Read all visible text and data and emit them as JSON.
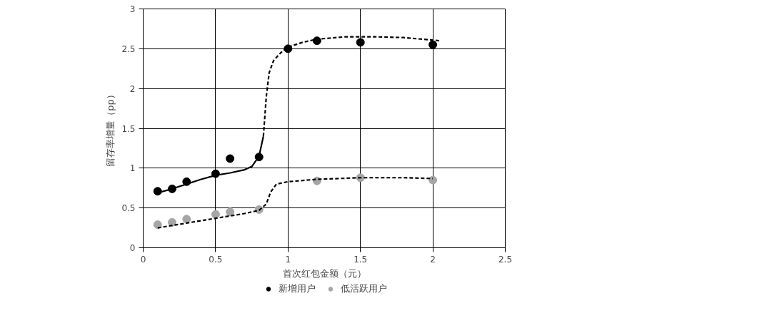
{
  "chart_data": {
    "type": "scatter",
    "xlabel": "首次红包金额（元）",
    "ylabel": "留存率增量（pp）",
    "xlim": [
      0,
      2.5
    ],
    "xticks": [
      0,
      0.5,
      1,
      1.5,
      2,
      2.5
    ],
    "ylim": [
      0,
      3
    ],
    "yticks": [
      0,
      0.5,
      1,
      1.5,
      2,
      2.5,
      3
    ],
    "grid": true,
    "legend": "bottom",
    "marker": "circle",
    "series": [
      {
        "name": "新增用户",
        "color": "#000000",
        "x": [
          0.1,
          0.2,
          0.3,
          0.5,
          0.6,
          0.8,
          1.0,
          1.2,
          1.5,
          2.0
        ],
        "values": [
          0.71,
          0.74,
          0.83,
          0.93,
          1.12,
          1.14,
          2.5,
          2.6,
          2.58,
          2.55
        ]
      },
      {
        "name": "低活跃用户",
        "color": "#a6a6a6",
        "x": [
          0.1,
          0.2,
          0.3,
          0.5,
          0.6,
          0.8,
          1.2,
          1.5,
          2.0
        ],
        "values": [
          0.29,
          0.32,
          0.36,
          0.42,
          0.45,
          0.48,
          0.84,
          0.88,
          0.85
        ]
      },
      {
        "type": "line",
        "color": "#000000",
        "line_style": "solid",
        "marker": "none",
        "x": [
          0.1,
          0.2,
          0.3,
          0.4,
          0.5,
          0.6,
          0.7,
          0.75,
          0.8,
          0.83
        ],
        "values": [
          0.69,
          0.74,
          0.8,
          0.86,
          0.91,
          0.94,
          0.98,
          1.02,
          1.15,
          1.4
        ]
      },
      {
        "type": "line",
        "color": "#000000",
        "line_style": "dashed",
        "marker": "none",
        "x": [
          0.83,
          0.85,
          0.87,
          0.9,
          0.95,
          1.0,
          1.1,
          1.2,
          1.4,
          1.6,
          1.8,
          2.05
        ],
        "values": [
          1.4,
          1.9,
          2.2,
          2.35,
          2.45,
          2.52,
          2.58,
          2.62,
          2.65,
          2.65,
          2.64,
          2.6
        ]
      },
      {
        "type": "line",
        "color": "#000000",
        "line_style": "dashed",
        "marker": "none",
        "x": [
          0.1,
          0.3,
          0.5,
          0.7,
          0.8,
          0.85,
          0.88,
          0.92,
          1.0,
          1.2,
          1.5,
          1.8,
          2.0
        ],
        "values": [
          0.25,
          0.31,
          0.37,
          0.43,
          0.47,
          0.55,
          0.7,
          0.8,
          0.83,
          0.86,
          0.88,
          0.88,
          0.87
        ]
      }
    ]
  }
}
